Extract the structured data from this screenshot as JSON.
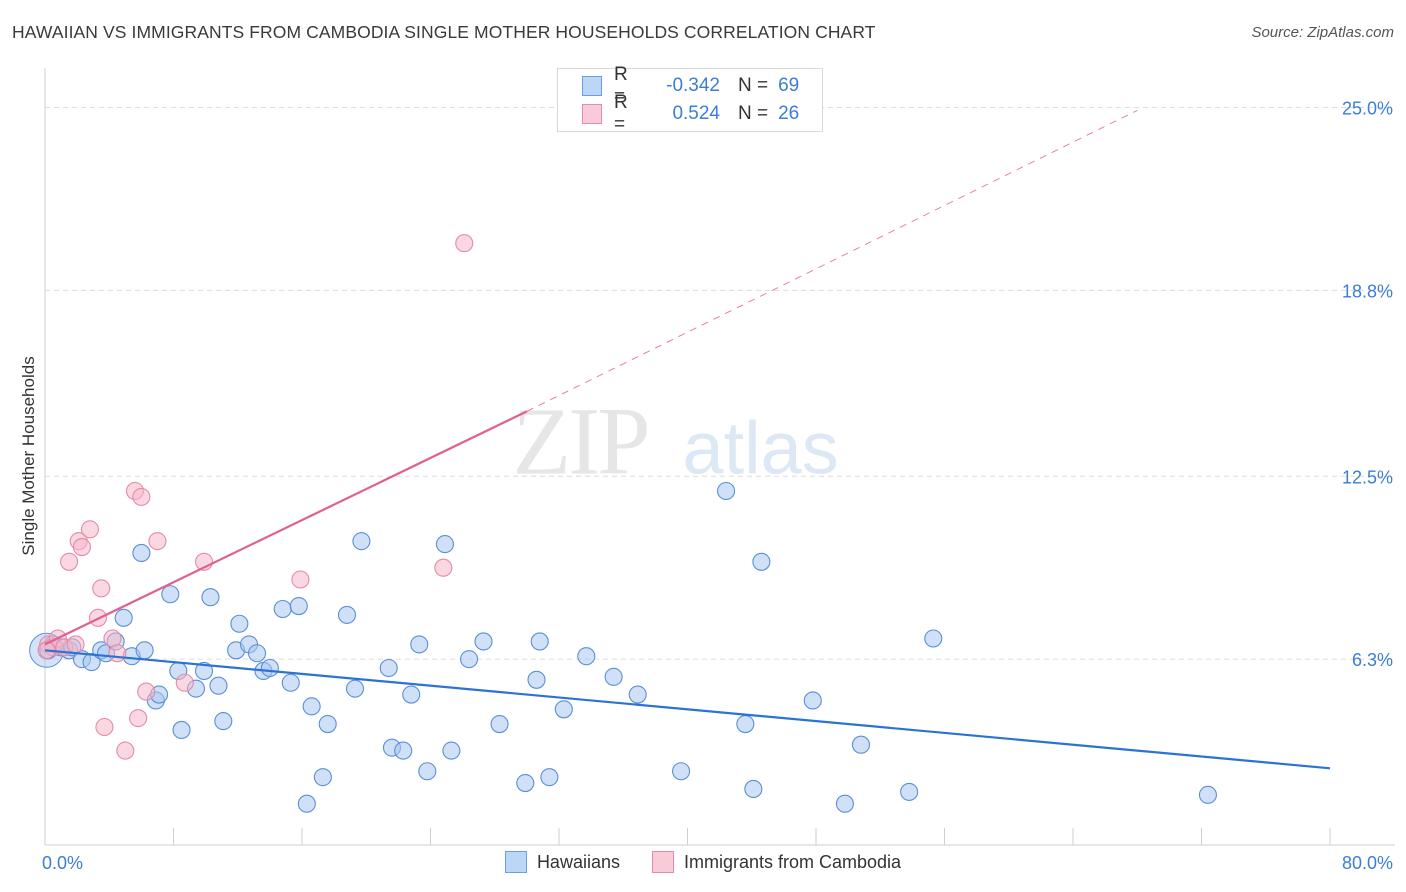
{
  "header": {
    "title": "HAWAIIAN VS IMMIGRANTS FROM CAMBODIA SINGLE MOTHER HOUSEHOLDS CORRELATION CHART",
    "source": "Source: ZipAtlas.com"
  },
  "legend_top": {
    "rows": [
      {
        "r_label": "R =",
        "r_value": "-0.342",
        "n_label": "N =",
        "n_value": "69"
      },
      {
        "r_label": "R =",
        "r_value": "0.524",
        "n_label": "N =",
        "n_value": "26"
      }
    ]
  },
  "legend_bottom": {
    "items": [
      {
        "label": "Hawaiians"
      },
      {
        "label": "Immigrants from Cambodia"
      }
    ]
  },
  "colors": {
    "blue_fill": "#a9c8f0",
    "blue_stroke": "#5a8fd6",
    "blue_line": "#2a73d4",
    "pink_fill": "#f5b8cb",
    "pink_stroke": "#e58aa8",
    "pink_line": "#e0608e",
    "tick_label": "#3b7dd8",
    "grid": "#dcdcdc"
  },
  "chart_data": {
    "type": "scatter",
    "title": "HAWAIIAN VS IMMIGRANTS FROM CAMBODIA SINGLE MOTHER HOUSEHOLDS CORRELATION CHART",
    "xlabel": "",
    "ylabel": "Single Mother Households",
    "xlim": [
      0,
      80
    ],
    "ylim": [
      0,
      26
    ],
    "x_tick_labels": [
      "0.0%",
      "80.0%"
    ],
    "y_ticks": [
      6.3,
      12.5,
      18.8,
      25.0
    ],
    "y_tick_labels": [
      "6.3%",
      "12.5%",
      "18.8%",
      "25.0%"
    ],
    "grid": true,
    "legend_position": "bottom",
    "watermark": "ZIPatlas",
    "series": [
      {
        "name": "Hawaiians",
        "color": "#a9c8f0",
        "points": [
          [
            0.2,
            6.6
          ],
          [
            0.5,
            6.8
          ],
          [
            1.0,
            6.7
          ],
          [
            1.5,
            6.6
          ],
          [
            1.7,
            6.7
          ],
          [
            2.3,
            6.3
          ],
          [
            2.9,
            6.2
          ],
          [
            3.5,
            6.6
          ],
          [
            3.8,
            6.5
          ],
          [
            4.4,
            6.9
          ],
          [
            4.9,
            7.7
          ],
          [
            5.4,
            6.4
          ],
          [
            6.0,
            9.9
          ],
          [
            6.2,
            6.6
          ],
          [
            6.9,
            4.9
          ],
          [
            7.1,
            5.1
          ],
          [
            7.8,
            8.5
          ],
          [
            8.3,
            5.9
          ],
          [
            8.5,
            3.9
          ],
          [
            9.4,
            5.3
          ],
          [
            9.9,
            5.9
          ],
          [
            10.3,
            8.4
          ],
          [
            10.8,
            5.4
          ],
          [
            11.1,
            4.2
          ],
          [
            11.9,
            6.6
          ],
          [
            12.1,
            7.5
          ],
          [
            12.7,
            6.8
          ],
          [
            13.2,
            6.5
          ],
          [
            13.6,
            5.9
          ],
          [
            14.0,
            6.0
          ],
          [
            15.3,
            5.5
          ],
          [
            14.8,
            8.0
          ],
          [
            15.8,
            8.1
          ],
          [
            16.3,
            1.4
          ],
          [
            16.6,
            4.7
          ],
          [
            17.3,
            2.3
          ],
          [
            17.6,
            4.1
          ],
          [
            18.8,
            7.8
          ],
          [
            19.3,
            5.3
          ],
          [
            19.7,
            10.3
          ],
          [
            21.4,
            6.0
          ],
          [
            21.6,
            3.3
          ],
          [
            22.3,
            3.2
          ],
          [
            22.8,
            5.1
          ],
          [
            23.3,
            6.8
          ],
          [
            23.8,
            2.5
          ],
          [
            25.3,
            3.2
          ],
          [
            24.9,
            10.2
          ],
          [
            26.4,
            6.3
          ],
          [
            27.3,
            6.9
          ],
          [
            28.3,
            4.1
          ],
          [
            29.9,
            2.1
          ],
          [
            30.6,
            5.6
          ],
          [
            30.8,
            6.9
          ],
          [
            31.4,
            2.3
          ],
          [
            32.3,
            4.6
          ],
          [
            33.7,
            6.4
          ],
          [
            35.4,
            5.7
          ],
          [
            36.9,
            5.1
          ],
          [
            39.6,
            2.5
          ],
          [
            42.4,
            12.0
          ],
          [
            44.1,
            1.9
          ],
          [
            43.6,
            4.1
          ],
          [
            44.6,
            9.6
          ],
          [
            47.8,
            4.9
          ],
          [
            49.8,
            1.4
          ],
          [
            50.8,
            3.4
          ],
          [
            53.8,
            1.8
          ],
          [
            55.3,
            7.0
          ],
          [
            72.4,
            1.7
          ]
        ]
      },
      {
        "name": "Immigrants from Cambodia",
        "color": "#f5b8cb",
        "points": [
          [
            0.2,
            6.8
          ],
          [
            0.5,
            6.7
          ],
          [
            0.8,
            7.0
          ],
          [
            1.2,
            6.7
          ],
          [
            1.5,
            9.6
          ],
          [
            1.9,
            6.8
          ],
          [
            2.1,
            10.3
          ],
          [
            2.3,
            10.1
          ],
          [
            2.8,
            10.7
          ],
          [
            3.3,
            7.7
          ],
          [
            3.5,
            8.7
          ],
          [
            3.7,
            4.0
          ],
          [
            4.2,
            7.0
          ],
          [
            4.5,
            6.5
          ],
          [
            5.0,
            3.2
          ],
          [
            5.6,
            12.0
          ],
          [
            5.8,
            4.3
          ],
          [
            6.0,
            11.8
          ],
          [
            6.3,
            5.2
          ],
          [
            7.0,
            10.3
          ],
          [
            8.7,
            5.5
          ],
          [
            9.9,
            9.6
          ],
          [
            15.9,
            9.0
          ],
          [
            24.8,
            9.4
          ],
          [
            26.1,
            20.4
          ],
          [
            0.1,
            6.6
          ]
        ]
      }
    ],
    "trend_lines": [
      {
        "series": "Hawaiians",
        "x": [
          0,
          80
        ],
        "y": [
          6.6,
          2.6
        ]
      },
      {
        "series": "Immigrants from Cambodia",
        "x": [
          0,
          30
        ],
        "y": [
          6.8,
          14.7
        ]
      },
      {
        "series": "Immigrants from Cambodia",
        "style": "dashed",
        "x": [
          30,
          68
        ],
        "y": [
          14.7,
          24.9
        ]
      }
    ]
  }
}
